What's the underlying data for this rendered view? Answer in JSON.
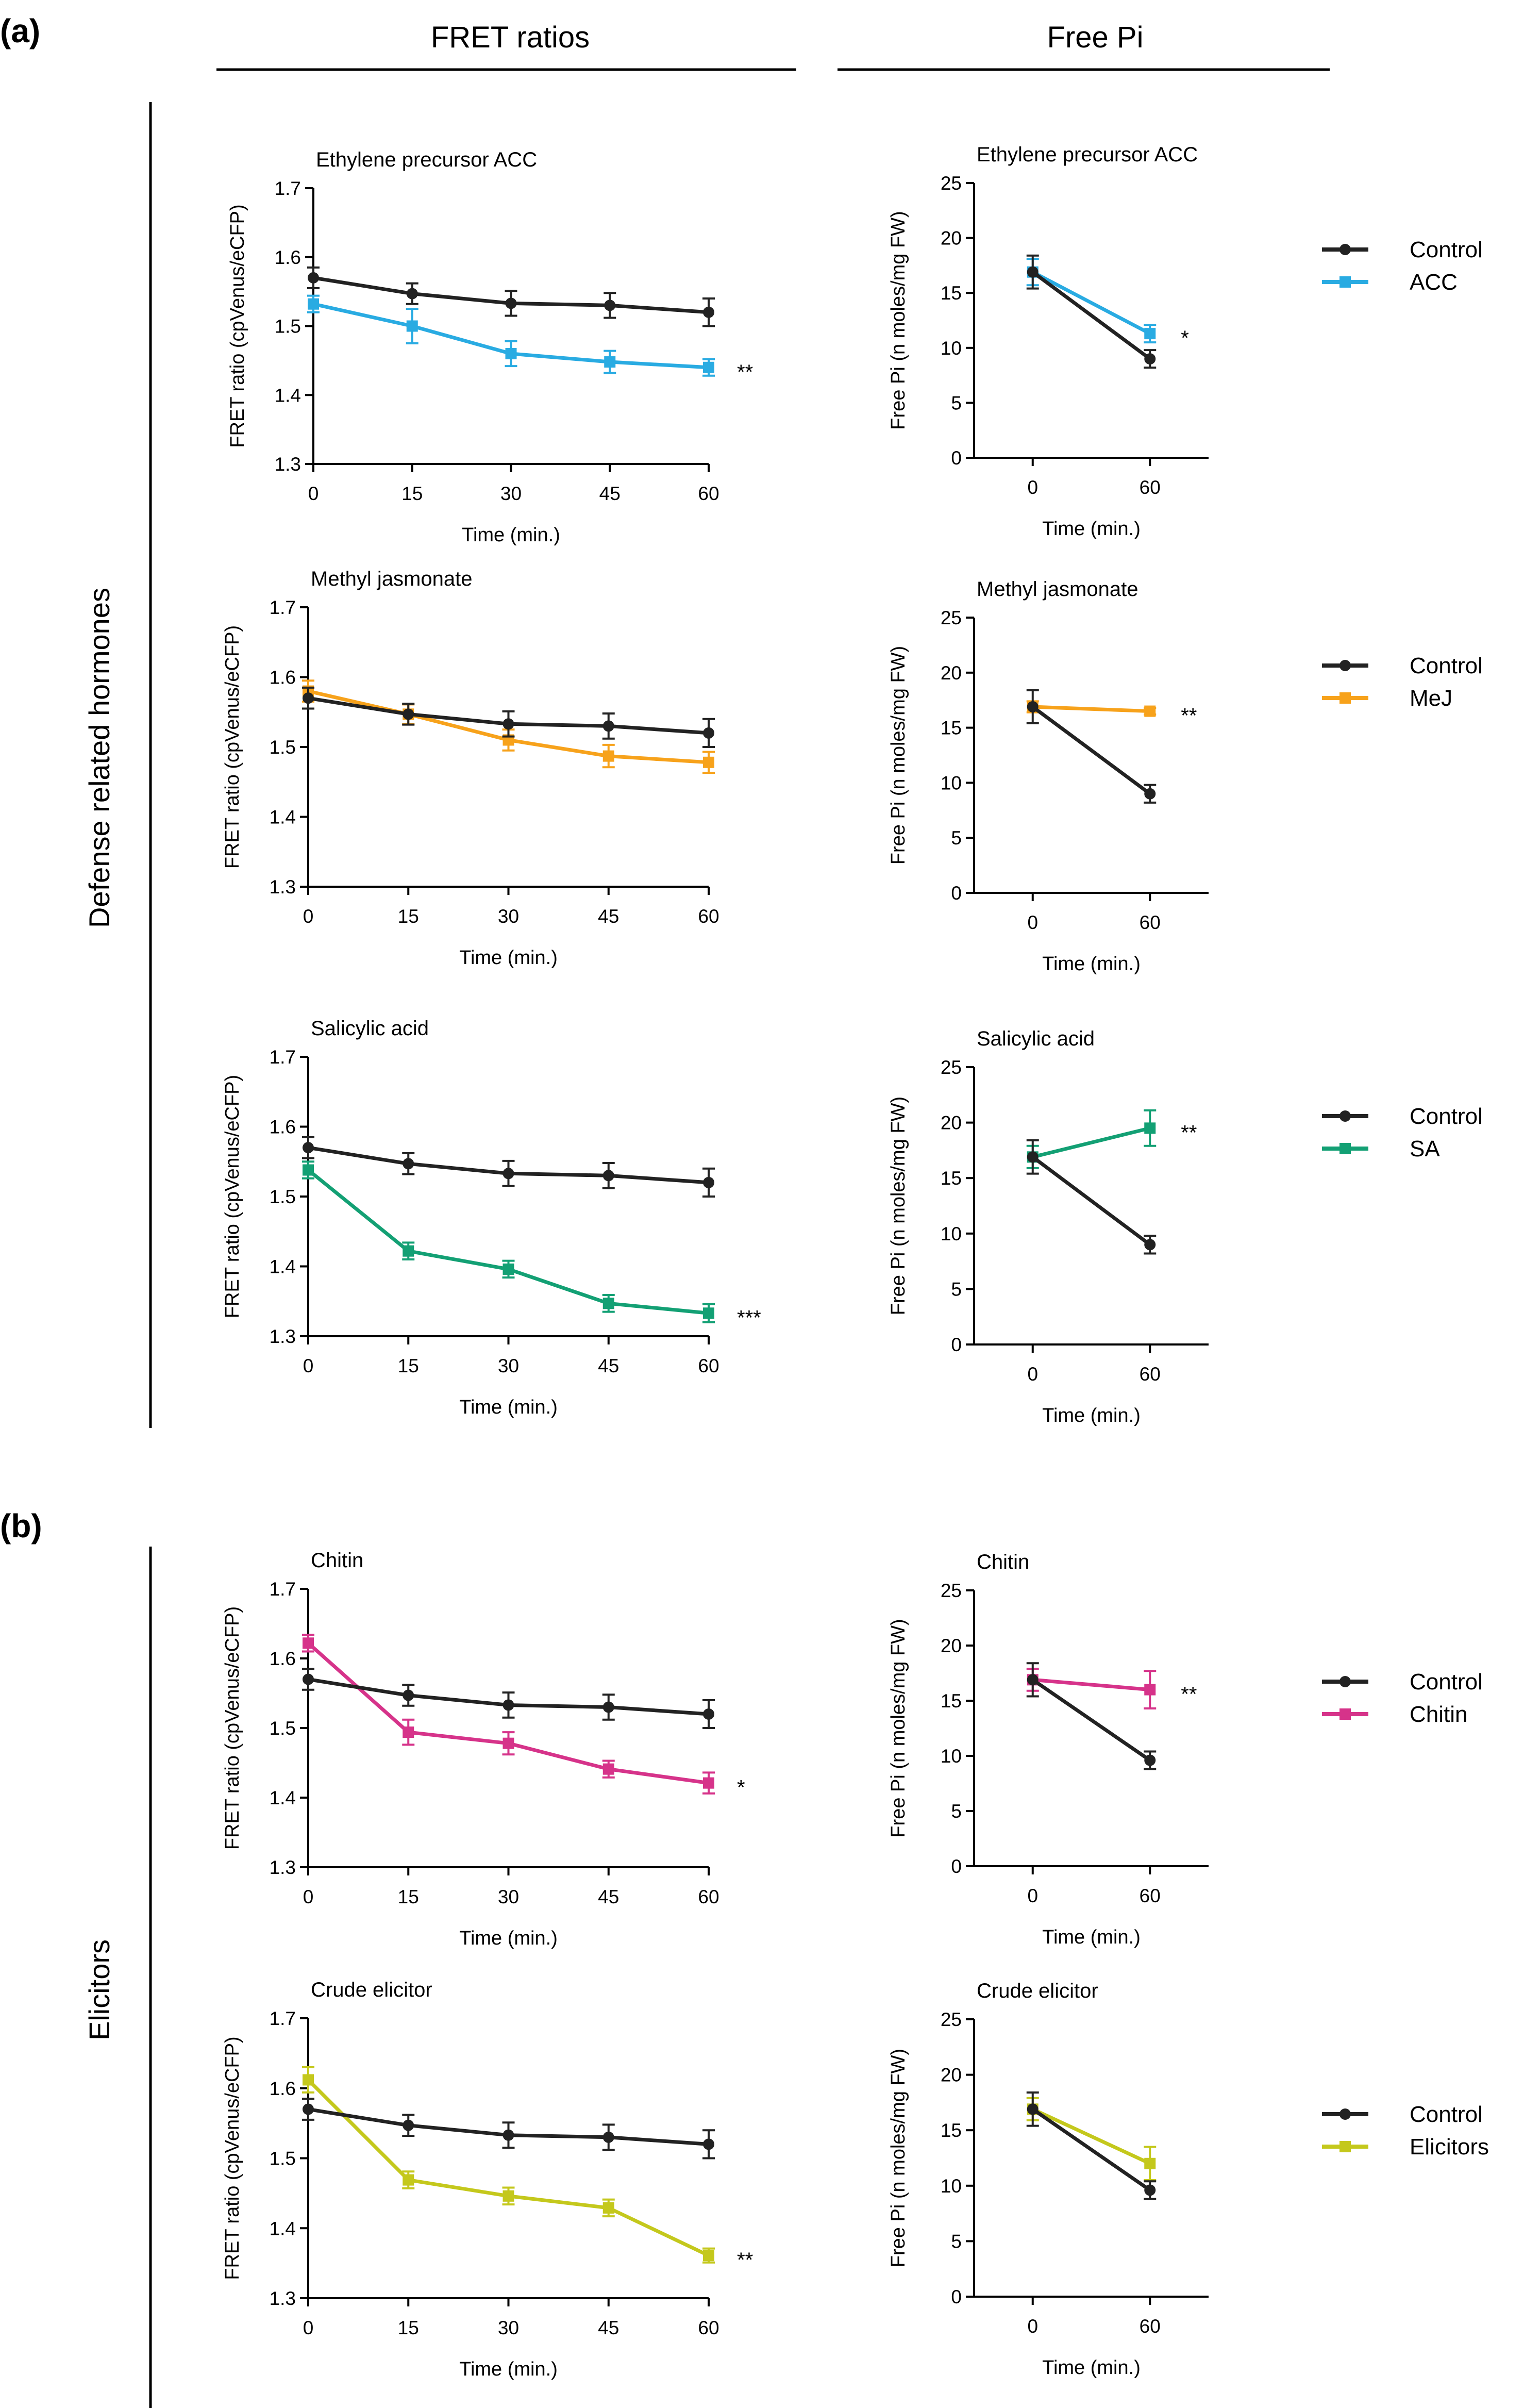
{
  "figure": {
    "panel_a": "(a)",
    "panel_b": "(b)",
    "col_left": "FRET ratios",
    "col_right": "Free Pi",
    "group_a": "Defense related hormones",
    "group_b": "Elicitors"
  },
  "colors": {
    "control": "#222222",
    "acc": "#29abe2",
    "mej": "#f7a21b",
    "sa": "#13a074",
    "chitin": "#d6338a",
    "elicitors": "#c4c81c"
  },
  "chart_data": [
    {
      "id": "fret-acc",
      "type": "line",
      "title": "Ethylene precursor ACC",
      "xlabel": "Time (min.)",
      "ylabel": "FRET ratio (cpVenus/eCFP)",
      "x": [
        0,
        15,
        30,
        45,
        60
      ],
      "xlim": [
        0,
        60
      ],
      "ylim": [
        1.3,
        1.7
      ],
      "yticks": [
        "1.3",
        "1.4",
        "1.5",
        "1.6",
        "1.7"
      ],
      "xticks": [
        "0",
        "15",
        "30",
        "45",
        "60"
      ],
      "series": [
        {
          "name": "Control",
          "color_key": "control",
          "marker": "circle",
          "values": [
            1.57,
            1.547,
            1.533,
            1.53,
            1.52
          ],
          "errors": [
            0.015,
            0.015,
            0.018,
            0.018,
            0.02
          ]
        },
        {
          "name": "ACC",
          "color_key": "acc",
          "marker": "square",
          "values": [
            1.532,
            1.5,
            1.46,
            1.448,
            1.44
          ],
          "errors": [
            0.012,
            0.025,
            0.018,
            0.016,
            0.012
          ]
        }
      ],
      "significance": "**"
    },
    {
      "id": "pi-acc",
      "type": "line",
      "title": "Ethylene precursor ACC",
      "xlabel": "Time (min.)",
      "ylabel": "Free Pi (n moles/mg FW)",
      "x": [
        0,
        60
      ],
      "xlim": [
        -30,
        90
      ],
      "ylim": [
        0,
        25
      ],
      "yticks": [
        "0",
        "5",
        "10",
        "15",
        "20",
        "25"
      ],
      "xticks": [
        "0",
        "60"
      ],
      "series": [
        {
          "name": "Control",
          "color_key": "control",
          "marker": "circle",
          "values": [
            16.9,
            9.0
          ],
          "errors": [
            1.5,
            0.8
          ]
        },
        {
          "name": "ACC",
          "color_key": "acc",
          "marker": "square",
          "values": [
            16.9,
            11.3
          ],
          "errors": [
            1.2,
            0.8
          ]
        }
      ],
      "legend": [
        "Control",
        "ACC"
      ],
      "significance": "*"
    },
    {
      "id": "fret-mej",
      "type": "line",
      "title": "Methyl jasmonate",
      "xlabel": "Time (min.)",
      "ylabel": "FRET ratio (cpVenus/eCFP)",
      "x": [
        0,
        15,
        30,
        45,
        60
      ],
      "xlim": [
        0,
        60
      ],
      "ylim": [
        1.3,
        1.7
      ],
      "yticks": [
        "1.3",
        "1.4",
        "1.5",
        "1.6",
        "1.7"
      ],
      "xticks": [
        "0",
        "15",
        "30",
        "45",
        "60"
      ],
      "series": [
        {
          "name": "Control",
          "color_key": "control",
          "marker": "circle",
          "values": [
            1.57,
            1.547,
            1.533,
            1.53,
            1.52
          ],
          "errors": [
            0.015,
            0.015,
            0.018,
            0.018,
            0.02
          ]
        },
        {
          "name": "MeJ",
          "color_key": "mej",
          "marker": "square",
          "values": [
            1.58,
            1.547,
            1.51,
            1.487,
            1.478
          ],
          "errors": [
            0.015,
            0.014,
            0.015,
            0.016,
            0.015
          ]
        }
      ],
      "significance": ""
    },
    {
      "id": "pi-mej",
      "type": "line",
      "title": "Methyl jasmonate",
      "xlabel": "Time (min.)",
      "ylabel": "Free Pi (n moles/mg FW)",
      "x": [
        0,
        60
      ],
      "xlim": [
        -30,
        90
      ],
      "ylim": [
        0,
        25
      ],
      "yticks": [
        "0",
        "5",
        "10",
        "15",
        "20",
        "25"
      ],
      "xticks": [
        "0",
        "60"
      ],
      "series": [
        {
          "name": "Control",
          "color_key": "control",
          "marker": "circle",
          "values": [
            16.9,
            9.0
          ],
          "errors": [
            1.5,
            0.8
          ]
        },
        {
          "name": "MeJ",
          "color_key": "mej",
          "marker": "square",
          "values": [
            16.9,
            16.5
          ],
          "errors": [
            0.5,
            0.3
          ]
        }
      ],
      "legend": [
        "Control",
        "MeJ"
      ],
      "significance": "**"
    },
    {
      "id": "fret-sa",
      "type": "line",
      "title": "Salicylic acid",
      "xlabel": "Time (min.)",
      "ylabel": "FRET ratio (cpVenus/eCFP)",
      "x": [
        0,
        15,
        30,
        45,
        60
      ],
      "xlim": [
        0,
        60
      ],
      "ylim": [
        1.3,
        1.7
      ],
      "yticks": [
        "1.3",
        "1.4",
        "1.5",
        "1.6",
        "1.7"
      ],
      "xticks": [
        "0",
        "15",
        "30",
        "45",
        "60"
      ],
      "series": [
        {
          "name": "Control",
          "color_key": "control",
          "marker": "circle",
          "values": [
            1.57,
            1.547,
            1.533,
            1.53,
            1.52
          ],
          "errors": [
            0.015,
            0.015,
            0.018,
            0.018,
            0.02
          ]
        },
        {
          "name": "SA",
          "color_key": "sa",
          "marker": "square",
          "values": [
            1.538,
            1.422,
            1.396,
            1.347,
            1.333
          ],
          "errors": [
            0.012,
            0.012,
            0.012,
            0.012,
            0.013
          ]
        }
      ],
      "significance": "***"
    },
    {
      "id": "pi-sa",
      "type": "line",
      "title": "Salicylic acid",
      "xlabel": "Time (min.)",
      "ylabel": "Free Pi (n moles/mg FW)",
      "x": [
        0,
        60
      ],
      "xlim": [
        -30,
        90
      ],
      "ylim": [
        0,
        25
      ],
      "yticks": [
        "0",
        "5",
        "10",
        "15",
        "20",
        "25"
      ],
      "xticks": [
        "0",
        "60"
      ],
      "series": [
        {
          "name": "Control",
          "color_key": "control",
          "marker": "circle",
          "values": [
            16.9,
            9.0
          ],
          "errors": [
            1.5,
            0.8
          ]
        },
        {
          "name": "SA",
          "color_key": "sa",
          "marker": "square",
          "values": [
            16.9,
            19.5
          ],
          "errors": [
            1.0,
            1.6
          ]
        }
      ],
      "legend": [
        "Control",
        "SA"
      ],
      "significance": "**"
    },
    {
      "id": "fret-chitin",
      "type": "line",
      "title": "Chitin",
      "xlabel": "Time (min.)",
      "ylabel": "FRET ratio (cpVenus/eCFP)",
      "x": [
        0,
        15,
        30,
        45,
        60
      ],
      "xlim": [
        0,
        60
      ],
      "ylim": [
        1.3,
        1.7
      ],
      "yticks": [
        "1.3",
        "1.4",
        "1.5",
        "1.6",
        "1.7"
      ],
      "xticks": [
        "0",
        "15",
        "30",
        "45",
        "60"
      ],
      "series": [
        {
          "name": "Control",
          "color_key": "control",
          "marker": "circle",
          "values": [
            1.57,
            1.547,
            1.533,
            1.53,
            1.52
          ],
          "errors": [
            0.015,
            0.015,
            0.018,
            0.018,
            0.02
          ]
        },
        {
          "name": "Chitin",
          "color_key": "chitin",
          "marker": "square",
          "values": [
            1.622,
            1.494,
            1.478,
            1.441,
            1.421
          ],
          "errors": [
            0.012,
            0.018,
            0.016,
            0.012,
            0.015
          ]
        }
      ],
      "significance": "*"
    },
    {
      "id": "pi-chitin",
      "type": "line",
      "title": "Chitin",
      "xlabel": "Time (min.)",
      "ylabel": "Free Pi (n moles/mg FW)",
      "x": [
        0,
        60
      ],
      "xlim": [
        -30,
        90
      ],
      "ylim": [
        0,
        25
      ],
      "yticks": [
        "0",
        "5",
        "10",
        "15",
        "20",
        "25"
      ],
      "xticks": [
        "0",
        "60"
      ],
      "series": [
        {
          "name": "Control",
          "color_key": "control",
          "marker": "circle",
          "values": [
            16.9,
            9.6
          ],
          "errors": [
            1.5,
            0.8
          ]
        },
        {
          "name": "Chitin",
          "color_key": "chitin",
          "marker": "square",
          "values": [
            16.9,
            16.0
          ],
          "errors": [
            1.0,
            1.7
          ]
        }
      ],
      "legend": [
        "Control",
        "Chitin"
      ],
      "significance": "**"
    },
    {
      "id": "fret-crude",
      "type": "line",
      "title": "Crude elicitor",
      "xlabel": "Time (min.)",
      "ylabel": "FRET ratio (cpVenus/eCFP)",
      "x": [
        0,
        15,
        30,
        45,
        60
      ],
      "xlim": [
        0,
        60
      ],
      "ylim": [
        1.3,
        1.7
      ],
      "yticks": [
        "1.3",
        "1.4",
        "1.5",
        "1.6",
        "1.7"
      ],
      "xticks": [
        "0",
        "15",
        "30",
        "45",
        "60"
      ],
      "series": [
        {
          "name": "Control",
          "color_key": "control",
          "marker": "circle",
          "values": [
            1.57,
            1.547,
            1.533,
            1.53,
            1.52
          ],
          "errors": [
            0.015,
            0.015,
            0.018,
            0.018,
            0.02
          ]
        },
        {
          "name": "Elicitors",
          "color_key": "elicitors",
          "marker": "square",
          "values": [
            1.612,
            1.469,
            1.446,
            1.429,
            1.361
          ],
          "errors": [
            0.018,
            0.012,
            0.012,
            0.012,
            0.01
          ]
        }
      ],
      "significance": "**"
    },
    {
      "id": "pi-crude",
      "type": "line",
      "title": "Crude elicitor",
      "xlabel": "Time (min.)",
      "ylabel": "Free Pi (n moles/mg FW)",
      "x": [
        0,
        60
      ],
      "xlim": [
        -30,
        90
      ],
      "ylim": [
        0,
        25
      ],
      "yticks": [
        "0",
        "5",
        "10",
        "15",
        "20",
        "25"
      ],
      "xticks": [
        "0",
        "60"
      ],
      "series": [
        {
          "name": "Control",
          "color_key": "control",
          "marker": "circle",
          "values": [
            16.9,
            9.6
          ],
          "errors": [
            1.5,
            0.8
          ]
        },
        {
          "name": "Elicitors",
          "color_key": "elicitors",
          "marker": "square",
          "values": [
            16.9,
            12.0
          ],
          "errors": [
            1.0,
            1.5
          ]
        }
      ],
      "legend": [
        "Control",
        "Elicitors"
      ],
      "significance": ""
    }
  ]
}
